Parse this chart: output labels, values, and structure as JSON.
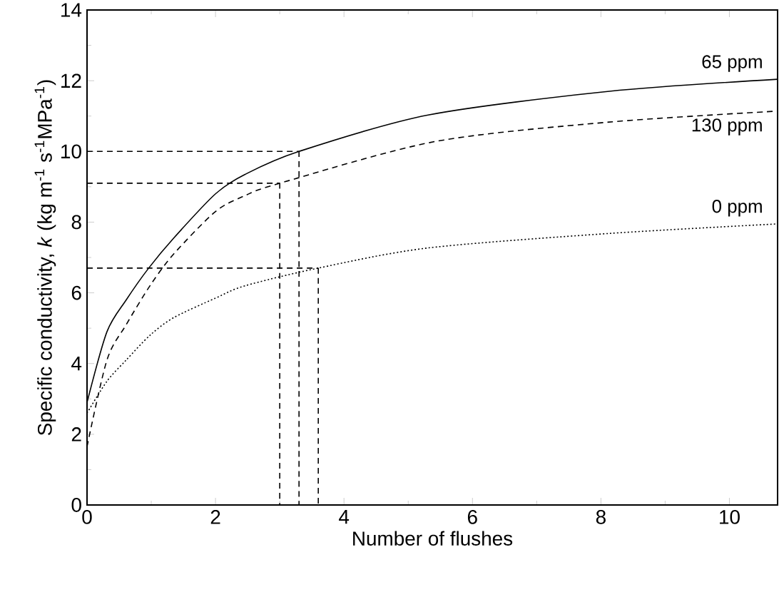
{
  "chart_data": {
    "type": "line",
    "xlabel": "Number of flushes",
    "ylabel": "Specific conductivity, *k* (kg m$^{-1}$ s$^{-1}$MPa$^{-1}$)",
    "xlim": [
      0,
      10.75
    ],
    "ylim": [
      0,
      14
    ],
    "xticks": [
      0,
      2,
      4,
      6,
      8,
      10
    ],
    "yticks": [
      0,
      2,
      4,
      6,
      8,
      10,
      12,
      14
    ],
    "grid": false,
    "marker": "none",
    "series": [
      {
        "name": "65 ppm",
        "color": "#000000",
        "line_style": "solid",
        "x": [
          0,
          0.31,
          0.61,
          0.96,
          1.35,
          2,
          2.46,
          3.3,
          5.31,
          8.13,
          10.75
        ],
        "values": [
          2.9,
          4.9,
          5.8,
          6.7,
          7.55,
          8.8,
          9.35,
          10,
          11.03,
          11.7,
          12.04
        ]
      },
      {
        "name": "130 ppm",
        "color": "#000000",
        "line_style": "dashed",
        "x": [
          0,
          0.31,
          0.61,
          0.98,
          1.35,
          2,
          2.46,
          3.0,
          5.42,
          8.13,
          10.75
        ],
        "values": [
          1.65,
          4.1,
          5.1,
          6.2,
          7.1,
          8.3,
          8.75,
          9.1,
          10.28,
          10.83,
          11.14
        ]
      },
      {
        "name": "0 ppm",
        "color": "#000000",
        "line_style": "dotted",
        "x": [
          0,
          0.31,
          0.61,
          0.98,
          1.35,
          2,
          2.46,
          3.6,
          5.31,
          8.13,
          10.75
        ],
        "values": [
          2.6,
          3.5,
          4.1,
          4.8,
          5.3,
          5.85,
          6.2,
          6.7,
          7.27,
          7.68,
          7.95
        ]
      },
      {
        "color": "#000000",
        "line_style": "dashed",
        "x": [
          0,
          3.3
        ],
        "values": [
          10,
          10
        ]
      },
      {
        "color": "#000000",
        "line_style": "dashed",
        "x": [
          3.3,
          3.3
        ],
        "values": [
          10,
          0
        ]
      },
      {
        "color": "#000000",
        "line_style": "dashed",
        "x": [
          0,
          3.0
        ],
        "values": [
          9.1,
          9.1
        ]
      },
      {
        "color": "#000000",
        "line_style": "dashed",
        "x": [
          3.0,
          3.0
        ],
        "values": [
          9.1,
          0
        ]
      },
      {
        "color": "#000000",
        "line_style": "dashed",
        "x": [
          0,
          3.6
        ],
        "values": [
          6.7,
          6.7
        ]
      },
      {
        "color": "#000000",
        "line_style": "dashed",
        "x": [
          3.6,
          3.6
        ],
        "values": [
          6.7,
          0
        ]
      }
    ]
  }
}
